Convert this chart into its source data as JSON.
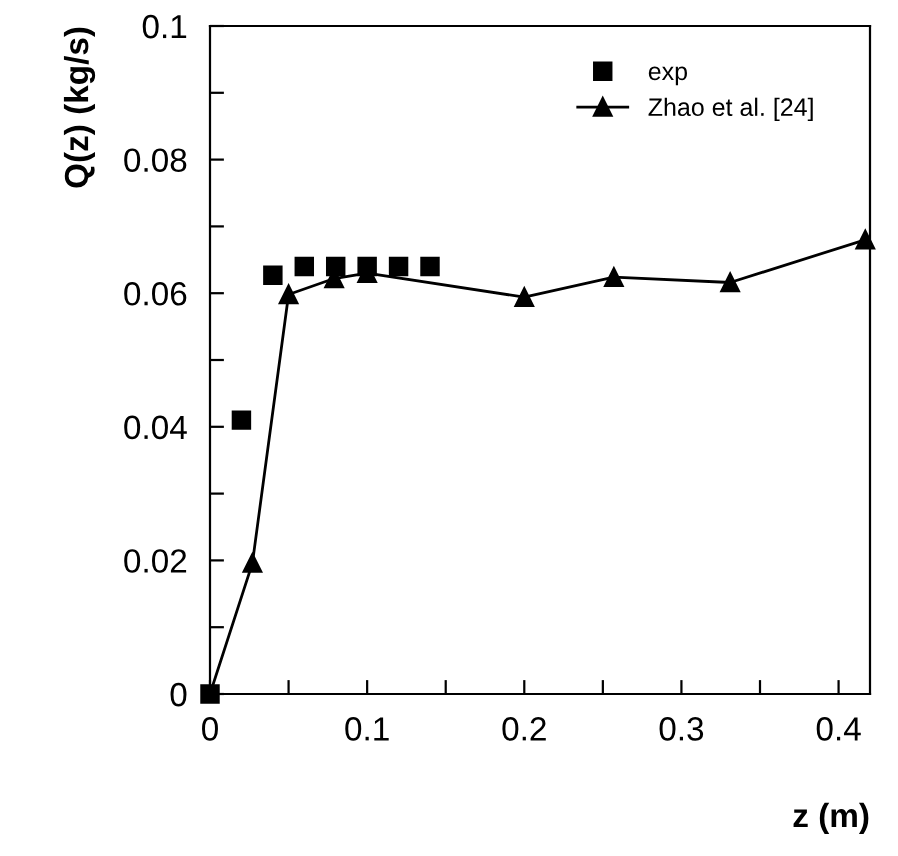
{
  "chart_data": {
    "type": "scatter",
    "xlabel": "z (m)",
    "ylabel": "Q(z) (kg/s)",
    "xlim": [
      0,
      0.42
    ],
    "ylim": [
      0,
      0.1
    ],
    "xticks": [
      0,
      {
        "value": 0.05,
        "label": null
      },
      0.1,
      {
        "value": 0.15,
        "label": null
      },
      0.2,
      {
        "value": 0.25,
        "label": null
      },
      0.3,
      {
        "value": 0.35,
        "label": null
      },
      0.4
    ],
    "yticks": [
      0,
      {
        "value": 0.01,
        "label": null
      },
      0.02,
      {
        "value": 0.03,
        "label": null
      },
      0.04,
      {
        "value": 0.05,
        "label": null
      },
      0.06,
      {
        "value": 0.07,
        "label": null
      },
      0.08,
      {
        "value": 0.09,
        "label": null
      },
      0.1
    ],
    "grid": false,
    "legend": "top right",
    "series": [
      {
        "name": "exp",
        "marker": "square",
        "color": "#000000",
        "x": [
          0,
          0.02,
          0.04,
          0.06,
          0.08,
          0.1,
          0.12,
          0.14
        ],
        "values": [
          0,
          0.041,
          0.0627,
          0.064,
          0.064,
          0.064,
          0.064,
          0.064
        ]
      },
      {
        "name": "Zhao et al. [24]",
        "type": "line",
        "marker": "triangle",
        "line_style": "solid",
        "color": "#000000",
        "x": [
          0,
          0.027,
          0.05,
          0.079,
          0.1,
          0.2,
          0.257,
          0.331,
          0.417
        ],
        "values": [
          0,
          0.0196,
          0.0598,
          0.0622,
          0.063,
          0.0594,
          0.0624,
          0.0616,
          0.068
        ]
      }
    ]
  }
}
